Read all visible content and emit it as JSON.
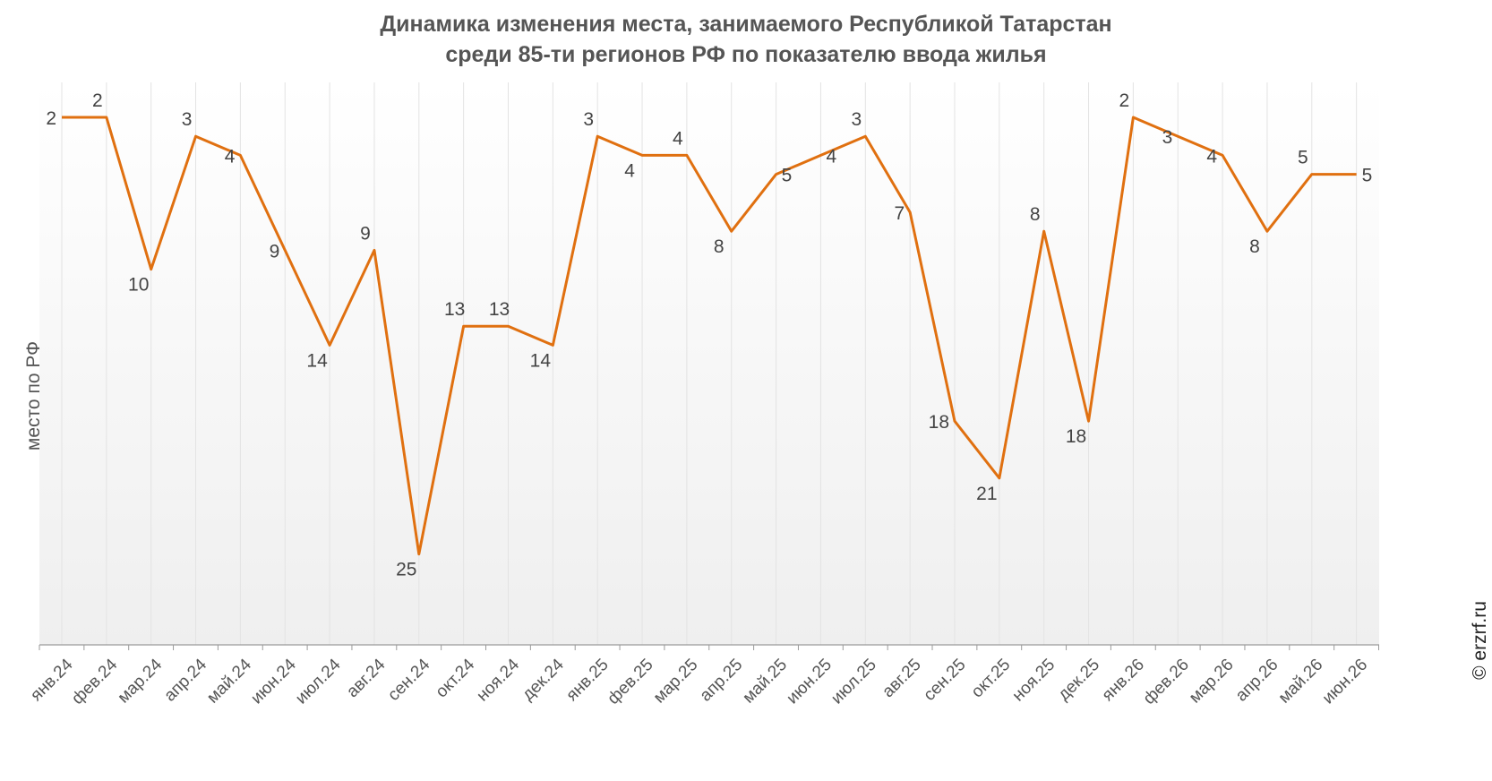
{
  "chart_data": {
    "type": "line",
    "title_lines": [
      "Динамика изменения места, занимаемого Республикой Татарстан",
      "среди 85-ти регионов РФ по показателю ввода жилья"
    ],
    "ylabel": "место по РФ",
    "watermark": "© erzrf.ru",
    "categories": [
      "янв.24",
      "фев.24",
      "мар.24",
      "апр.24",
      "май.24",
      "июн.24",
      "июл.24",
      "авг.24",
      "сен.24",
      "окт.24",
      "ноя.24",
      "дек.24",
      "янв.25",
      "фев.25",
      "мар.25",
      "апр.25",
      "май.25",
      "июн.25",
      "июл.25",
      "авг.25",
      "сен.25",
      "окт.25",
      "ноя.25",
      "дек.25",
      "янв.26",
      "фев.26",
      "мар.26",
      "апр.26",
      "май.26",
      "июн.26"
    ],
    "values": [
      2,
      2,
      10,
      3,
      4,
      9,
      14,
      9,
      25,
      13,
      13,
      14,
      3,
      4,
      4,
      8,
      5,
      4,
      3,
      7,
      18,
      21,
      8,
      18,
      2,
      3,
      4,
      8,
      5,
      5
    ],
    "y_inverted": true,
    "grid": "vertical",
    "colors": {
      "line": "#E07010",
      "grid": "#e3e3e3",
      "axis": "#9a9a9a"
    }
  }
}
